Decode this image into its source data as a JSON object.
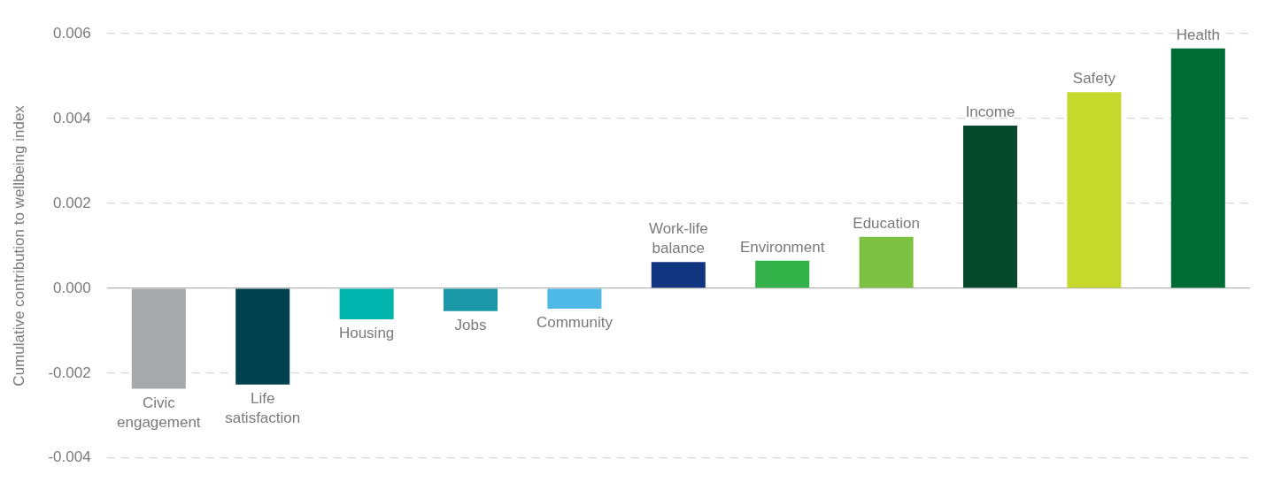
{
  "chart_data": {
    "type": "bar",
    "ylabel": "Cumulative contribution to wellbeing index",
    "categories": [
      "Civic engagement",
      "Life satisfaction",
      "Housing",
      "Jobs",
      "Community",
      "Work-life balance",
      "Environment",
      "Education",
      "Income",
      "Safety",
      "Health"
    ],
    "values": [
      -0.00237,
      -0.00227,
      -0.00073,
      -0.00054,
      -0.00048,
      0.00062,
      0.00065,
      0.00121,
      0.00383,
      0.00462,
      0.00565
    ],
    "colors": [
      "#a7a9ac",
      "#00434e",
      "#00b5ad",
      "#1c97a8",
      "#4eb8e6",
      "#12357f",
      "#33b24a",
      "#7dc142",
      "#06492d",
      "#c5d92d",
      "#006b35"
    ],
    "ylim": [
      -0.004,
      0.006
    ],
    "yticks": [
      -0.004,
      -0.002,
      {
        "value": 0,
        "label": "0.000"
      },
      0.002,
      0.004,
      0.006
    ],
    "grid": "y"
  }
}
